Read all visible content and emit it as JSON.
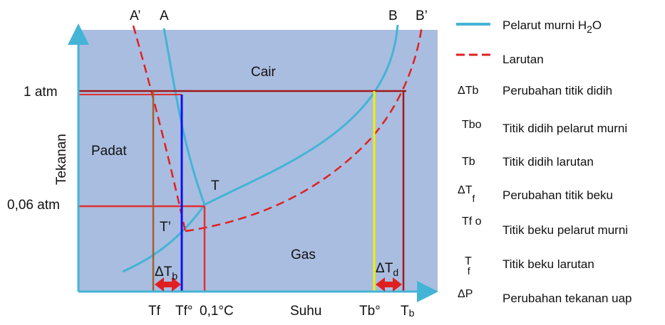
{
  "diagram": {
    "curve_labels": {
      "a_prime": "A’",
      "a": "A",
      "b": "B",
      "b_prime": "B’"
    },
    "regions": {
      "liquid": "Cair",
      "solid": "Padat",
      "gas": "Gas"
    },
    "points": {
      "triple": "T",
      "triple_prime": "T’"
    },
    "y_axis": {
      "title": "Tekanan",
      "tick_1atm": "1 atm",
      "tick_006atm": "0,06 atm"
    },
    "x_axis": {
      "title": "Suhu",
      "tick_tf": "Tf",
      "tick_tf0": "Tf°",
      "tick_01c": "0,1°C",
      "tick_tb0": "Tb°",
      "tick_tb": "T",
      "tick_tb_sub": "b"
    },
    "deltas": {
      "left_base": "ΔT",
      "left_sub": "b",
      "right_base": "ΔT",
      "right_sub": "d"
    }
  },
  "legend": [
    {
      "symbol": "",
      "text": "Pelarut murni H",
      "text_sub": "2",
      "text_tail": "O"
    },
    {
      "symbol": "",
      "text": "Larutan"
    },
    {
      "symbol": "ΔTb",
      "text": "Perubahan titik didih"
    },
    {
      "symbol": "Tbo",
      "text": "Titik didih pelarut murni"
    },
    {
      "symbol": "Tb",
      "text": "Titik didih larutan"
    },
    {
      "symbol": "ΔT",
      "symbol_sub": "f",
      "text": "Perubahan titik beku"
    },
    {
      "symbol": "Tf o",
      "text": "Titik beku pelarut murni"
    },
    {
      "symbol": "T",
      "symbol_sub": "f",
      "text": "Titik beku larutan"
    },
    {
      "symbol": "ΔP",
      "text": "Perubahan tekanan uap"
    }
  ],
  "colors": {
    "plot_bg": "#a9bde0",
    "axis": "#44b4d6",
    "pure_solvent_curve": "#44b4d6",
    "solution_curve": "#e02020",
    "one_atm_line": "#a01818",
    "tf_line": "#a06030",
    "tf0_line": "#1010f0",
    "red_line": "#e03030",
    "tb0_line": "#f4f000",
    "tb_line": "#a01818",
    "arrow": "#e02020"
  }
}
